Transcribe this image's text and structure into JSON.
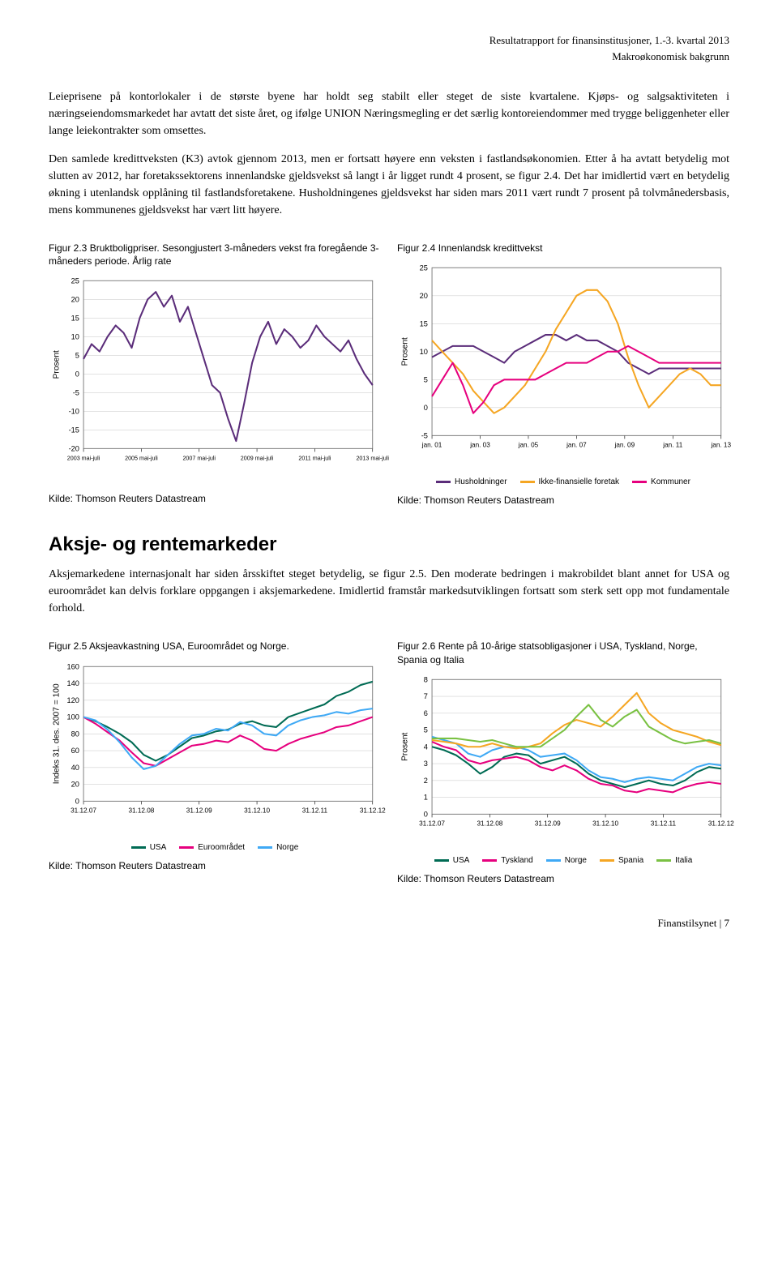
{
  "header": {
    "line1": "Resultatrapport for finansinstitusjoner, 1.-3. kvartal 2013",
    "line2": "Makroøkonomisk bakgrunn"
  },
  "paragraphs": {
    "p1": "Leieprisene på kontorlokaler i de største byene har holdt seg stabilt eller steget de siste kvartalene. Kjøps- og salgsaktiviteten i næringseiendomsmarkedet har avtatt det siste året, og ifølge UNION Næringsmegling er det særlig kontoreiendommer med trygge beliggenheter eller lange leiekontrakter som omsettes.",
    "p2": "Den samlede kredittveksten (K3) avtok gjennom 2013, men er fortsatt høyere enn veksten i fastlandsøkonomien. Etter å ha avtatt betydelig mot slutten av 2012, har foretakssektorens innenlandske gjeldsvekst så langt i år ligget rundt 4 prosent, se figur 2.4. Det har imidlertid vært en betydelig økning i utenlandsk opplåning til fastlandsforetakene. Husholdningenes gjeldsvekst har siden mars 2011 vært rundt 7 prosent på tolvmånedersbasis, mens kommunenes gjeldsvekst har vært litt høyere."
  },
  "fig23": {
    "title": "Figur 2.3 Bruktboligpriser. Sesongjustert 3-måneders vekst fra foregående 3-måneders periode. Årlig rate",
    "type": "line",
    "ylabel": "Prosent",
    "ylim": [
      -20,
      25
    ],
    "ytick_step": 5,
    "xticks": [
      "2003 mai-juli",
      "2005 mai-juli",
      "2007 mai-juli",
      "2009 mai-juli",
      "2011 mai-juli",
      "2013 mai-juli"
    ],
    "series_color": "#5b2d7a",
    "line_width": 2,
    "grid_color": "#d0d0d0",
    "background_color": "#ffffff",
    "values": [
      4,
      8,
      6,
      10,
      13,
      11,
      7,
      15,
      20,
      22,
      18,
      21,
      14,
      18,
      11,
      4,
      -3,
      -5,
      -12,
      -18,
      -8,
      3,
      10,
      14,
      8,
      12,
      10,
      7,
      9,
      13,
      10,
      8,
      6,
      9,
      4,
      0,
      -3
    ],
    "source": "Kilde: Thomson Reuters Datastream"
  },
  "fig24": {
    "title": "Figur 2.4 Innenlandsk kredittvekst",
    "type": "line",
    "ylabel": "Prosent",
    "ylim": [
      -5,
      25
    ],
    "ytick_step": 5,
    "xticks": [
      "jan. 01",
      "jan. 03",
      "jan. 05",
      "jan. 07",
      "jan. 09",
      "jan. 11",
      "jan. 13"
    ],
    "background_color": "#ffffff",
    "grid_color": "#d0d0d0",
    "line_width": 2,
    "series": [
      {
        "name": "Husholdninger",
        "color": "#5b2d7a",
        "values": [
          9,
          10,
          11,
          11,
          11,
          10,
          9,
          8,
          10,
          11,
          12,
          13,
          13,
          12,
          13,
          12,
          12,
          11,
          10,
          8,
          7,
          6,
          7,
          7,
          7,
          7,
          7,
          7,
          7
        ]
      },
      {
        "name": "Ikke-finansielle foretak",
        "color": "#f5a623",
        "values": [
          12,
          10,
          8,
          6,
          3,
          1,
          -1,
          0,
          2,
          4,
          7,
          10,
          14,
          17,
          20,
          21,
          21,
          19,
          15,
          9,
          4,
          0,
          2,
          4,
          6,
          7,
          6,
          4,
          4
        ]
      },
      {
        "name": "Kommuner",
        "color": "#e6007e",
        "values": [
          2,
          5,
          8,
          4,
          -1,
          1,
          4,
          5,
          5,
          5,
          5,
          6,
          7,
          8,
          8,
          8,
          9,
          10,
          10,
          11,
          10,
          9,
          8,
          8,
          8,
          8,
          8,
          8,
          8
        ]
      }
    ],
    "source": "Kilde: Thomson Reuters Datastream"
  },
  "section2": {
    "heading": "Aksje- og rentemarkeder",
    "text": "Aksjemarkedene internasjonalt har siden årsskiftet steget betydelig, se figur 2.5. Den moderate bedringen i makrobildet blant annet for USA og euroområdet kan delvis forklare oppgangen i aksjemarkedene. Imidlertid framstår markedsutviklingen fortsatt som sterk sett opp mot fundamentale forhold."
  },
  "fig25": {
    "title": "Figur 2.5 Aksjeavkastning USA, Euroområdet og Norge.",
    "type": "line",
    "ylabel": "Indeks 31. des. 2007 = 100",
    "ylim": [
      0,
      160
    ],
    "ytick_step": 20,
    "xticks": [
      "31.12.07",
      "31.12.08",
      "31.12.09",
      "31.12.10",
      "31.12.11",
      "31.12.12"
    ],
    "background_color": "#ffffff",
    "grid_color": "#d0d0d0",
    "line_width": 2,
    "series": [
      {
        "name": "USA",
        "color": "#006b54",
        "values": [
          100,
          95,
          88,
          80,
          70,
          55,
          48,
          55,
          65,
          75,
          78,
          83,
          85,
          92,
          95,
          90,
          88,
          100,
          105,
          110,
          115,
          125,
          130,
          138,
          142
        ]
      },
      {
        "name": "Euroområdet",
        "color": "#e6007e",
        "values": [
          100,
          92,
          82,
          72,
          58,
          45,
          42,
          50,
          58,
          66,
          68,
          72,
          70,
          78,
          72,
          62,
          60,
          68,
          74,
          78,
          82,
          88,
          90,
          95,
          100
        ]
      },
      {
        "name": "Norge",
        "color": "#3fa9f5",
        "values": [
          100,
          96,
          85,
          70,
          52,
          38,
          42,
          55,
          68,
          78,
          80,
          86,
          84,
          94,
          90,
          80,
          78,
          90,
          96,
          100,
          102,
          106,
          104,
          108,
          110
        ]
      }
    ],
    "source": "Kilde: Thomson Reuters Datastream"
  },
  "fig26": {
    "title": "Figur 2.6 Rente på 10-årige statsobligasjoner i USA, Tyskland, Norge, Spania og Italia",
    "type": "line",
    "ylabel": "Prosent",
    "ylim": [
      0,
      8
    ],
    "ytick_step": 1,
    "xticks": [
      "31.12.07",
      "31.12.08",
      "31.12.09",
      "31.12.10",
      "31.12.11",
      "31.12.12"
    ],
    "background_color": "#ffffff",
    "grid_color": "#d0d0d0",
    "line_width": 2,
    "series": [
      {
        "name": "USA",
        "color": "#006b54",
        "values": [
          4.0,
          3.8,
          3.5,
          3.0,
          2.4,
          2.8,
          3.4,
          3.6,
          3.5,
          3.0,
          3.2,
          3.4,
          3.0,
          2.4,
          2.0,
          1.8,
          1.6,
          1.8,
          2.0,
          1.8,
          1.7,
          2.0,
          2.5,
          2.8,
          2.7
        ]
      },
      {
        "name": "Tyskland",
        "color": "#e6007e",
        "values": [
          4.3,
          4.0,
          3.8,
          3.2,
          3.0,
          3.2,
          3.3,
          3.4,
          3.2,
          2.8,
          2.6,
          2.9,
          2.6,
          2.1,
          1.8,
          1.7,
          1.4,
          1.3,
          1.5,
          1.4,
          1.3,
          1.6,
          1.8,
          1.9,
          1.8
        ]
      },
      {
        "name": "Norge",
        "color": "#3fa9f5",
        "values": [
          4.6,
          4.4,
          4.2,
          3.6,
          3.4,
          3.8,
          4.0,
          4.0,
          3.8,
          3.4,
          3.5,
          3.6,
          3.2,
          2.6,
          2.2,
          2.1,
          1.9,
          2.1,
          2.2,
          2.1,
          2.0,
          2.4,
          2.8,
          3.0,
          2.9
        ]
      },
      {
        "name": "Spania",
        "color": "#f5a623",
        "values": [
          4.4,
          4.3,
          4.2,
          4.0,
          4.0,
          4.2,
          4.0,
          3.9,
          4.0,
          4.2,
          4.8,
          5.3,
          5.6,
          5.4,
          5.2,
          5.8,
          6.5,
          7.2,
          6.0,
          5.4,
          5.0,
          4.8,
          4.6,
          4.3,
          4.1
        ]
      },
      {
        "name": "Italia",
        "color": "#7ac143",
        "values": [
          4.5,
          4.5,
          4.5,
          4.4,
          4.3,
          4.4,
          4.2,
          4.0,
          4.0,
          4.0,
          4.5,
          5.0,
          5.8,
          6.5,
          5.6,
          5.2,
          5.8,
          6.2,
          5.2,
          4.8,
          4.4,
          4.2,
          4.3,
          4.4,
          4.2
        ]
      }
    ],
    "source": "Kilde: Thomson Reuters Datastream"
  },
  "footer": "Finanstilsynet | 7"
}
